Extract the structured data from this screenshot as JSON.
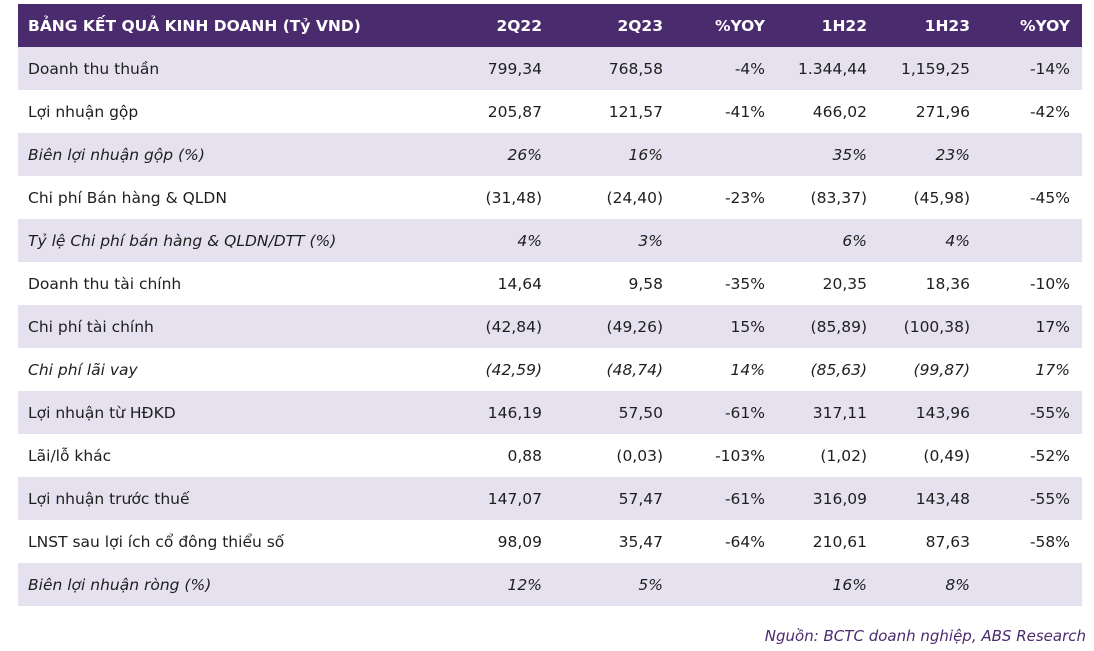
{
  "table": {
    "headers": [
      "BẢNG KẾT QUẢ KINH DOANH (Tỷ VND)",
      "2Q22",
      "2Q23",
      "%YOY",
      "1H22",
      "1H23",
      "%YOY"
    ],
    "rows": [
      [
        "Doanh thu thuần",
        "799,34",
        "768,58",
        "-4%",
        "1.344,44",
        "1,159,25",
        "-14%"
      ],
      [
        "Lợi nhuận gộp",
        "205,87",
        "121,57",
        "-41%",
        "466,02",
        "271,96",
        "-42%"
      ],
      [
        "Biên lợi nhuận gộp (%)",
        "26%",
        "16%",
        "",
        "35%",
        "23%",
        ""
      ],
      [
        "Chi phí Bán hàng & QLDN",
        "(31,48)",
        "(24,40)",
        "-23%",
        "(83,37)",
        "(45,98)",
        "-45%"
      ],
      [
        "Tỷ lệ Chi phí bán hàng & QLDN/DTT (%)",
        "4%",
        "3%",
        "",
        "6%",
        "4%",
        ""
      ],
      [
        "Doanh thu tài chính",
        "14,64",
        "9,58",
        "-35%",
        "20,35",
        "18,36",
        "-10%"
      ],
      [
        "Chi phí tài chính",
        "(42,84)",
        "(49,26)",
        "15%",
        "(85,89)",
        "(100,38)",
        "17%"
      ],
      [
        "Chi phí lãi vay",
        "(42,59)",
        "(48,74)",
        "14%",
        "(85,63)",
        "(99,87)",
        "17%"
      ],
      [
        "Lợi nhuận từ HĐKD",
        "146,19",
        "57,50",
        "-61%",
        "317,11",
        "143,96",
        "-55%"
      ],
      [
        "Lãi/lỗ khác",
        "0,88",
        "(0,03)",
        "-103%",
        "(1,02)",
        "(0,49)",
        "-52%"
      ],
      [
        "Lợi nhuận trước thuế",
        "147,07",
        "57,47",
        "-61%",
        "316,09",
        "143,48",
        "-55%"
      ],
      [
        "LNST sau lợi ích cổ đông thiểu số",
        "98,09",
        "35,47",
        "-64%",
        "210,61",
        "87,63",
        "-58%"
      ],
      [
        "Biên lợi nhuận ròng (%)",
        "12%",
        "5%",
        "",
        "16%",
        "8%",
        ""
      ]
    ]
  },
  "source": "Nguồn: BCTC doanh nghiệp, ABS Research"
}
